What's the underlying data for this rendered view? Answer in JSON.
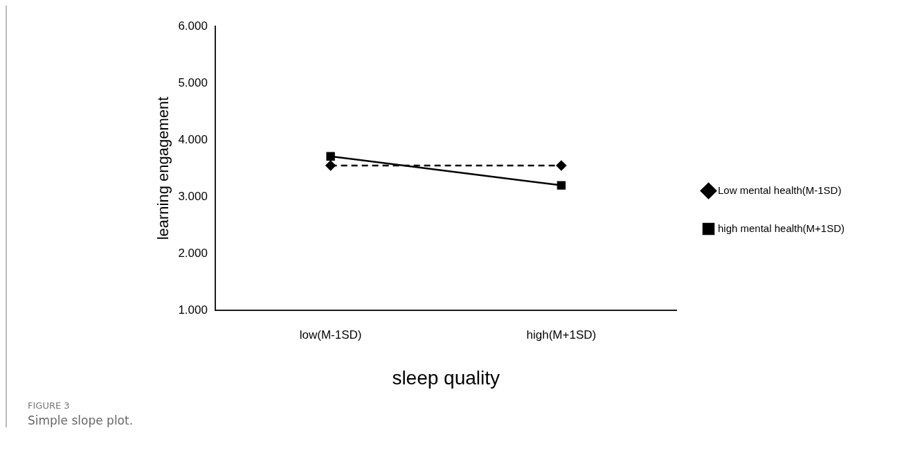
{
  "chart_data": {
    "type": "line",
    "xlabel": "sleep quality",
    "ylabel": "learning engagement",
    "categories": [
      "low(M-1SD)",
      "high(M+1SD)"
    ],
    "series": [
      {
        "name": "Low mental health(M-1SD)",
        "color": "#000000",
        "values": [
          3.55,
          3.55
        ],
        "marker": "diamond",
        "line_style": "dashed"
      },
      {
        "name": "high mental health(M+1SD)",
        "color": "#000000",
        "values": [
          3.71,
          3.2
        ],
        "marker": "square",
        "line_style": "solid"
      }
    ],
    "ylim": [
      1,
      6
    ],
    "yticks": [
      {
        "value": 1,
        "label": "1.000"
      },
      {
        "value": 2,
        "label": "2.000"
      },
      {
        "value": 3,
        "label": "3.000"
      },
      {
        "value": 4,
        "label": "4.000"
      },
      {
        "value": 5,
        "label": "5.000"
      },
      {
        "value": 6,
        "label": "6.000"
      }
    ],
    "grid": false,
    "legend": "right",
    "annotations": [
      "FIGURE 3",
      "Simple slope plot."
    ]
  }
}
